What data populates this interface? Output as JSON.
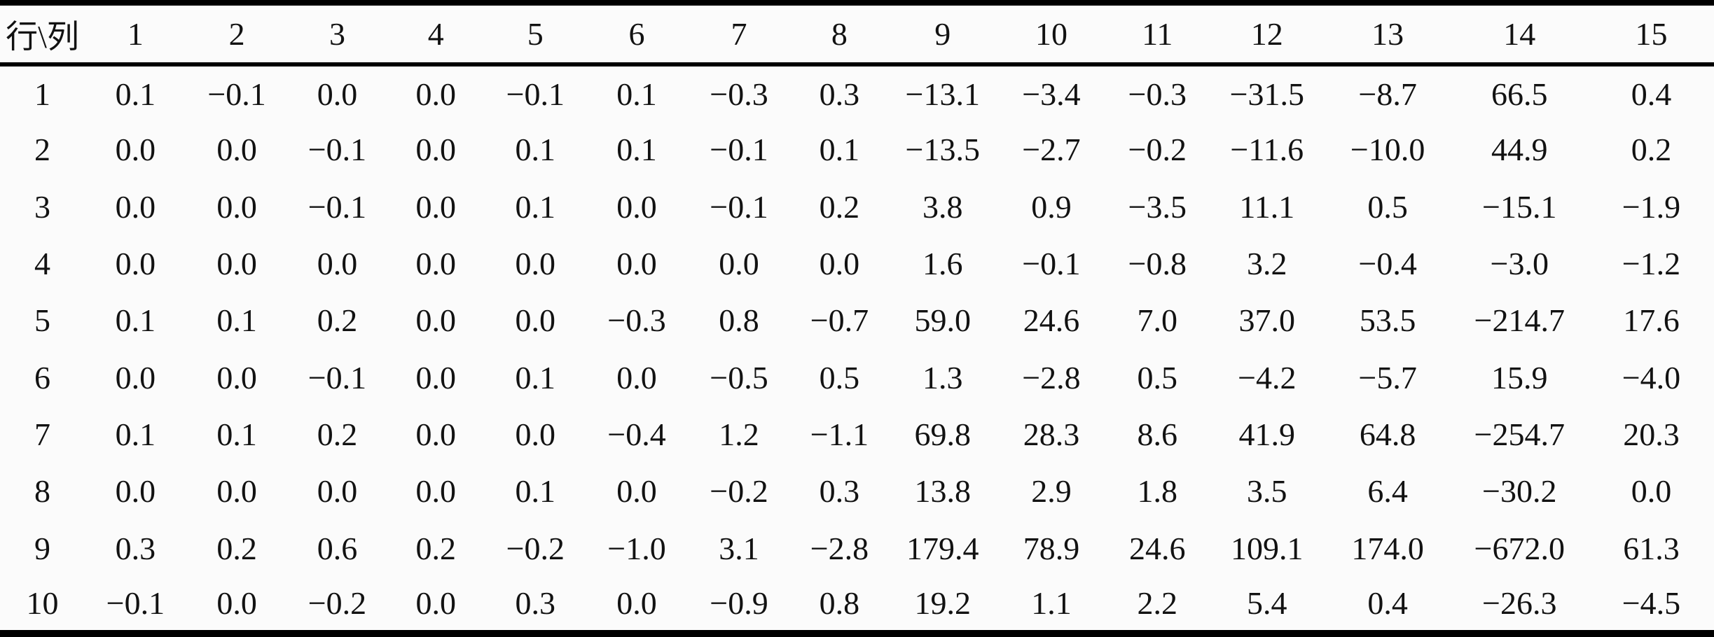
{
  "page": {
    "background_color": "#fbfbfb",
    "text_color": "#121212",
    "rule_color": "#000000"
  },
  "table": {
    "corner_header": "行\\列",
    "column_headers": [
      "1",
      "2",
      "3",
      "4",
      "5",
      "6",
      "7",
      "8",
      "9",
      "10",
      "11",
      "12",
      "13",
      "14",
      "15"
    ],
    "rows": [
      {
        "label": "1",
        "values": [
          "0.1",
          "−0.1",
          "0.0",
          "0.0",
          "−0.1",
          "0.1",
          "−0.3",
          "0.3",
          "−13.1",
          "−3.4",
          "−0.3",
          "−31.5",
          "−8.7",
          "66.5",
          "0.4"
        ]
      },
      {
        "label": "2",
        "values": [
          "0.0",
          "0.0",
          "−0.1",
          "0.0",
          "0.1",
          "0.1",
          "−0.1",
          "0.1",
          "−13.5",
          "−2.7",
          "−0.2",
          "−11.6",
          "−10.0",
          "44.9",
          "0.2"
        ]
      },
      {
        "label": "3",
        "values": [
          "0.0",
          "0.0",
          "−0.1",
          "0.0",
          "0.1",
          "0.0",
          "−0.1",
          "0.2",
          "3.8",
          "0.9",
          "−3.5",
          "11.1",
          "0.5",
          "−15.1",
          "−1.9"
        ]
      },
      {
        "label": "4",
        "values": [
          "0.0",
          "0.0",
          "0.0",
          "0.0",
          "0.0",
          "0.0",
          "0.0",
          "0.0",
          "1.6",
          "−0.1",
          "−0.8",
          "3.2",
          "−0.4",
          "−3.0",
          "−1.2"
        ]
      },
      {
        "label": "5",
        "values": [
          "0.1",
          "0.1",
          "0.2",
          "0.0",
          "0.0",
          "−0.3",
          "0.8",
          "−0.7",
          "59.0",
          "24.6",
          "7.0",
          "37.0",
          "53.5",
          "−214.7",
          "17.6"
        ]
      },
      {
        "label": "6",
        "values": [
          "0.0",
          "0.0",
          "−0.1",
          "0.0",
          "0.1",
          "0.0",
          "−0.5",
          "0.5",
          "1.3",
          "−2.8",
          "0.5",
          "−4.2",
          "−5.7",
          "15.9",
          "−4.0"
        ]
      },
      {
        "label": "7",
        "values": [
          "0.1",
          "0.1",
          "0.2",
          "0.0",
          "0.0",
          "−0.4",
          "1.2",
          "−1.1",
          "69.8",
          "28.3",
          "8.6",
          "41.9",
          "64.8",
          "−254.7",
          "20.3"
        ]
      },
      {
        "label": "8",
        "values": [
          "0.0",
          "0.0",
          "0.0",
          "0.0",
          "0.1",
          "0.0",
          "−0.2",
          "0.3",
          "13.8",
          "2.9",
          "1.8",
          "3.5",
          "6.4",
          "−30.2",
          "0.0"
        ]
      },
      {
        "label": "9",
        "values": [
          "0.3",
          "0.2",
          "0.6",
          "0.2",
          "−0.2",
          "−1.0",
          "3.1",
          "−2.8",
          "179.4",
          "78.9",
          "24.6",
          "109.1",
          "174.0",
          "−672.0",
          "61.3"
        ]
      },
      {
        "label": "10",
        "values": [
          "−0.1",
          "0.0",
          "−0.2",
          "0.0",
          "0.3",
          "0.0",
          "−0.9",
          "0.8",
          "19.2",
          "1.1",
          "2.2",
          "5.4",
          "0.4",
          "−26.3",
          "−4.5"
        ]
      }
    ]
  }
}
